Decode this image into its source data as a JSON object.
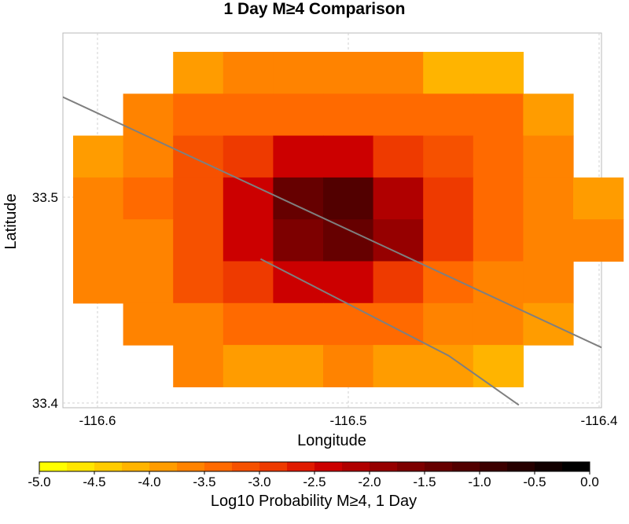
{
  "chart_data": {
    "type": "heatmap",
    "title": "1 Day M≥4 Comparison",
    "xlabel": "Longitude",
    "ylabel": "Latitude",
    "xlim": [
      -116.6,
      -116.4
    ],
    "ylim": [
      33.4,
      33.5
    ],
    "x_ticks": [
      {
        "value": -116.6,
        "label": "-116.6"
      },
      {
        "value": -116.5,
        "label": "-116.5"
      },
      {
        "value": -116.4,
        "label": "-116.4"
      }
    ],
    "y_ticks": [
      {
        "value": 33.5,
        "label": "33.5"
      },
      {
        "value": 33.4,
        "label": "33.4"
      }
    ],
    "grid": true,
    "cell_columns": 11,
    "cell_rows": 8,
    "cells": [
      [
        null,
        null,
        -3.9,
        -3.6,
        -3.6,
        -3.6,
        -3.6,
        -4.1,
        -4.1,
        null,
        null
      ],
      [
        null,
        -3.6,
        -3.4,
        -3.4,
        -3.4,
        -3.4,
        -3.4,
        -3.4,
        -3.5,
        -4.0,
        null
      ],
      [
        -4.0,
        -3.6,
        -3.2,
        -2.9,
        -2.5,
        -2.5,
        -2.9,
        -3.2,
        -3.4,
        -3.6,
        null
      ],
      [
        -3.7,
        -3.5,
        -3.1,
        -2.5,
        -1.5,
        -1.1,
        -2.2,
        -2.9,
        -3.3,
        -3.6,
        -4.0
      ],
      [
        -3.7,
        -3.6,
        -3.1,
        -2.3,
        -1.7,
        -1.3,
        -1.9,
        -2.8,
        -3.3,
        -3.6,
        -3.7
      ],
      [
        -3.7,
        -3.6,
        -3.2,
        -2.9,
        -2.5,
        -2.3,
        -2.9,
        -3.3,
        -3.6,
        -3.7,
        null
      ],
      [
        null,
        -3.6,
        -3.6,
        -3.5,
        -3.3,
        -3.3,
        -3.5,
        -3.6,
        -3.6,
        -3.8,
        null
      ],
      [
        null,
        null,
        -3.7,
        -4.0,
        -3.9,
        -3.6,
        -3.9,
        -4.0,
        -4.1,
        null,
        null
      ]
    ],
    "fault_lines": [
      [
        [
          -116.625,
          33.555
        ],
        [
          -116.385,
          33.419
        ]
      ],
      [
        [
          -116.535,
          33.47
        ],
        [
          -116.46,
          33.423
        ],
        [
          -116.432,
          33.399
        ]
      ]
    ],
    "colorbar": {
      "label": "Log10 Probability M≥4, 1 Day",
      "min": -5.0,
      "max": 0.0,
      "tick_labels": [
        "-5.0",
        "-4.5",
        "-4.0",
        "-3.5",
        "-3.0",
        "-2.5",
        "-2.0",
        "-1.5",
        "-1.0",
        "-0.5",
        "0.0"
      ],
      "colors": [
        "#ffff00",
        "#ffe600",
        "#ffcc00",
        "#ffb400",
        "#ff9c00",
        "#ff8300",
        "#ff6a00",
        "#f65100",
        "#ee3a00",
        "#e01a00",
        "#cc0000",
        "#b00000",
        "#960000",
        "#7d0000",
        "#660000",
        "#520000",
        "#3c0000",
        "#260000",
        "#120000",
        "#000000"
      ]
    }
  }
}
